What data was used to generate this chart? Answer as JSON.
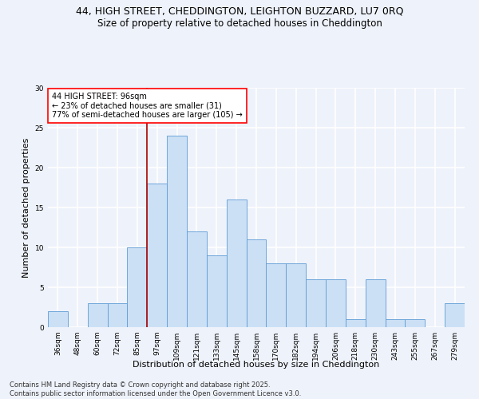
{
  "title_line1": "44, HIGH STREET, CHEDDINGTON, LEIGHTON BUZZARD, LU7 0RQ",
  "title_line2": "Size of property relative to detached houses in Cheddington",
  "xlabel": "Distribution of detached houses by size in Cheddington",
  "ylabel": "Number of detached properties",
  "bin_labels": [
    "36sqm",
    "48sqm",
    "60sqm",
    "72sqm",
    "85sqm",
    "97sqm",
    "109sqm",
    "121sqm",
    "133sqm",
    "145sqm",
    "158sqm",
    "170sqm",
    "182sqm",
    "194sqm",
    "206sqm",
    "218sqm",
    "230sqm",
    "243sqm",
    "255sqm",
    "267sqm",
    "279sqm"
  ],
  "bar_values": [
    2,
    0,
    3,
    3,
    10,
    18,
    24,
    12,
    9,
    16,
    11,
    8,
    8,
    6,
    6,
    1,
    6,
    1,
    1,
    0,
    3
  ],
  "bar_color": "#cce0f5",
  "bar_edge_color": "#5b9bd5",
  "annotation_text": "44 HIGH STREET: 96sqm\n← 23% of detached houses are smaller (31)\n77% of semi-detached houses are larger (105) →",
  "annotation_box_color": "white",
  "annotation_box_edge_color": "red",
  "vline_color": "#aa0000",
  "vline_x_index": 5,
  "ylim": [
    0,
    30
  ],
  "yticks": [
    0,
    5,
    10,
    15,
    20,
    25,
    30
  ],
  "footer_text": "Contains HM Land Registry data © Crown copyright and database right 2025.\nContains public sector information licensed under the Open Government Licence v3.0.",
  "background_color": "#eef2fa",
  "grid_color": "white",
  "title_fontsize": 9,
  "subtitle_fontsize": 8.5,
  "axis_label_fontsize": 8,
  "tick_fontsize": 6.5,
  "annotation_fontsize": 7,
  "footer_fontsize": 6
}
